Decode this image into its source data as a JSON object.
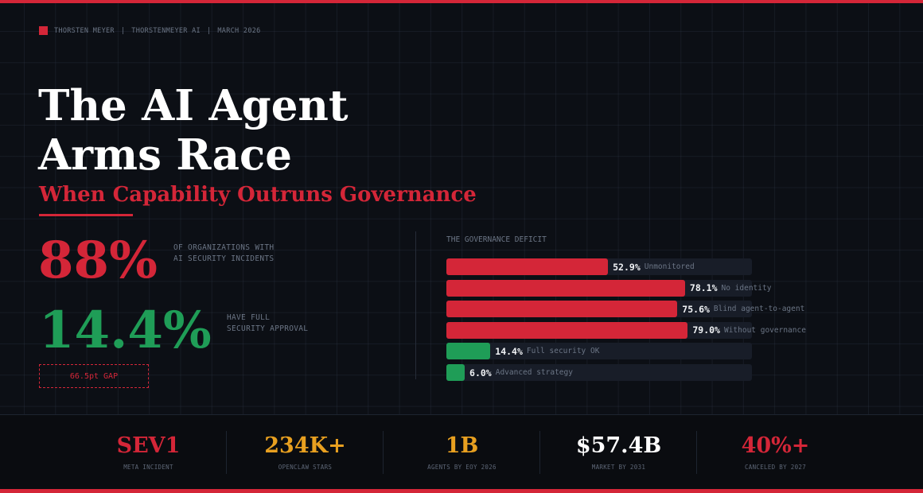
{
  "colors": {
    "accent": "#d42638",
    "green": "#1f9d57",
    "amber": "#e8a020",
    "white": "#ffffff"
  },
  "header": {
    "author": "THORSTEN MEYER",
    "sep1": "|",
    "site": "THORSTENMEYER AI",
    "sep2": "|",
    "date": "MARCH 2026"
  },
  "title": {
    "line1": "The AI Agent",
    "line2": "Arms Race",
    "subtitle": "When Capability Outruns Governance"
  },
  "stats": {
    "incidents": {
      "value": "88%",
      "label1": "OF ORGANIZATIONS WITH",
      "label2": "AI SECURITY INCIDENTS"
    },
    "approval": {
      "value": "14.4%",
      "label1": "HAVE FULL",
      "label2": "SECURITY APPROVAL"
    },
    "gap": "66.5pt GAP"
  },
  "chart_data": {
    "type": "bar",
    "orientation": "horizontal",
    "title": "THE GOVERNANCE DEFICIT",
    "xlim": [
      0,
      100
    ],
    "bars": [
      {
        "value": 52.9,
        "value_label": "52.9%",
        "label": "Unmonitored",
        "color": "#d42638"
      },
      {
        "value": 78.1,
        "value_label": "78.1%",
        "label": "No identity",
        "color": "#d42638"
      },
      {
        "value": 75.6,
        "value_label": "75.6%",
        "label": "Blind agent-to-agent",
        "color": "#d42638"
      },
      {
        "value": 79.0,
        "value_label": "79.0%",
        "label": "Without governance",
        "color": "#d42638"
      },
      {
        "value": 14.4,
        "value_label": "14.4%",
        "label": "Full security OK",
        "color": "#1f9d57"
      },
      {
        "value": 6.0,
        "value_label": "6.0%",
        "label": "Advanced strategy",
        "color": "#1f9d57"
      }
    ]
  },
  "footer": [
    {
      "value": "SEV1",
      "label": "META INCIDENT",
      "color": "#d42638"
    },
    {
      "value": "234K+",
      "label": "OPENCLAW STARS",
      "color": "#e8a020"
    },
    {
      "value": "1B",
      "label": "AGENTS BY EOY 2026",
      "color": "#e8a020"
    },
    {
      "value": "$57.4B",
      "label": "MARKET BY 2031",
      "color": "#ffffff"
    },
    {
      "value": "40%+",
      "label": "CANCELED BY 2027",
      "color": "#d42638"
    }
  ]
}
